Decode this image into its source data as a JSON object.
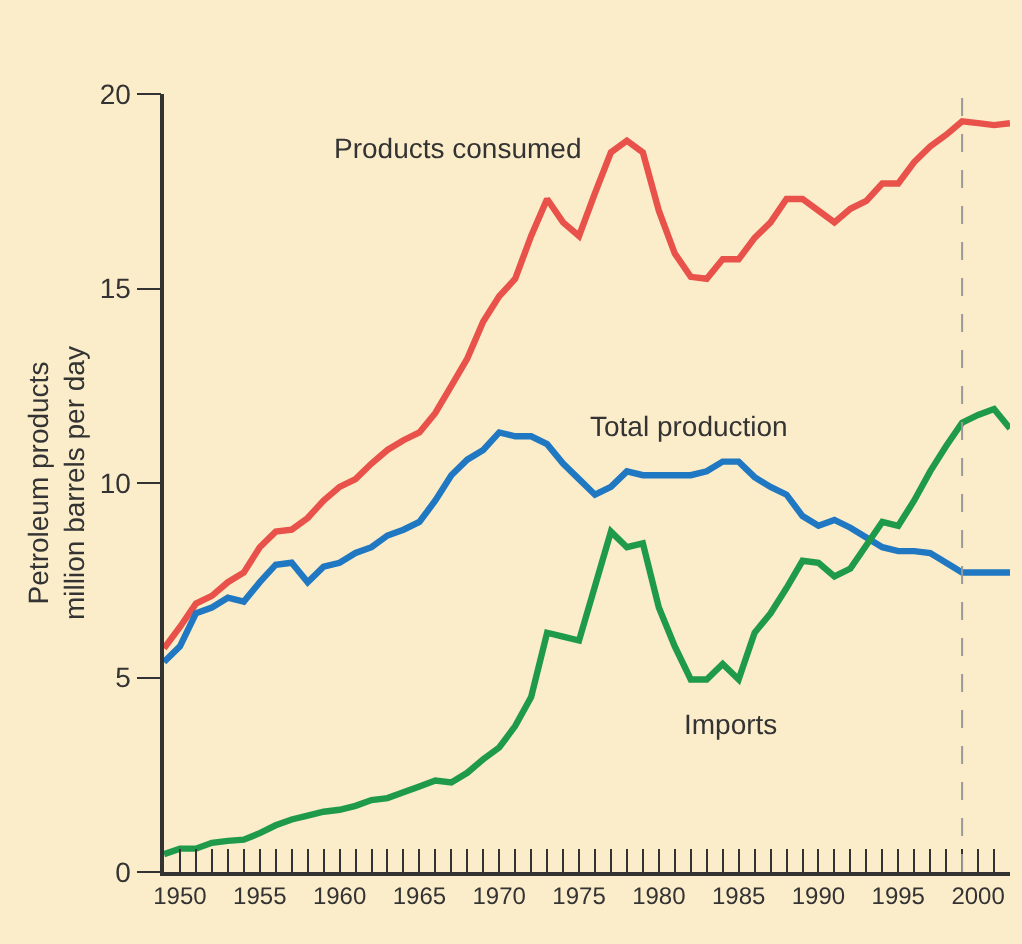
{
  "chart_data": {
    "type": "line",
    "ylabel": "Petroleum products\nmillion barrels per day",
    "x": [
      1949,
      1950,
      1951,
      1952,
      1953,
      1954,
      1955,
      1956,
      1957,
      1958,
      1959,
      1960,
      1961,
      1962,
      1963,
      1964,
      1965,
      1966,
      1967,
      1968,
      1969,
      1970,
      1971,
      1972,
      1973,
      1974,
      1975,
      1976,
      1977,
      1978,
      1979,
      1980,
      1981,
      1982,
      1983,
      1984,
      1985,
      1986,
      1987,
      1988,
      1989,
      1990,
      1991,
      1992,
      1993,
      1994,
      1995,
      1996,
      1997,
      1998,
      1999,
      2000,
      2001,
      2002
    ],
    "series": [
      {
        "color": "#e8524a",
        "values": [
          5.75,
          6.3,
          6.9,
          7.1,
          7.45,
          7.7,
          8.35,
          8.75,
          8.8,
          9.1,
          9.55,
          9.9,
          10.1,
          10.5,
          10.85,
          11.1,
          11.3,
          11.8,
          12.5,
          13.2,
          14.15,
          14.8,
          15.25,
          16.35,
          17.3,
          16.7,
          16.35,
          17.45,
          18.5,
          18.8,
          18.5,
          17.0,
          15.9,
          15.3,
          15.25,
          15.75,
          15.75,
          16.3,
          16.7,
          17.3,
          17.3,
          17.0,
          16.7,
          17.05,
          17.25,
          17.7,
          17.7,
          18.25,
          18.65,
          18.95,
          19.3,
          19.25,
          19.2,
          19.25
        ]
      },
      {
        "color": "#1f78c1",
        "values": [
          5.4,
          5.8,
          6.65,
          6.8,
          7.05,
          6.95,
          7.45,
          7.9,
          7.95,
          7.45,
          7.85,
          7.95,
          8.2,
          8.35,
          8.65,
          8.8,
          9.0,
          9.55,
          10.2,
          10.6,
          10.85,
          11.3,
          11.2,
          11.2,
          11.0,
          10.5,
          10.1,
          9.7,
          9.9,
          10.3,
          10.2,
          10.2,
          10.2,
          10.2,
          10.3,
          10.55,
          10.55,
          10.15,
          9.9,
          9.7,
          9.15,
          8.9,
          9.05,
          8.85,
          8.6,
          8.35,
          8.25,
          8.25,
          8.2,
          7.95,
          7.7,
          7.7,
          7.7,
          7.7
        ]
      },
      {
        "color": "#1f9a4a",
        "values": [
          0.46,
          0.6,
          0.6,
          0.75,
          0.8,
          0.83,
          1.0,
          1.2,
          1.35,
          1.45,
          1.55,
          1.6,
          1.7,
          1.85,
          1.9,
          2.05,
          2.2,
          2.35,
          2.3,
          2.55,
          2.9,
          3.2,
          3.75,
          4.5,
          6.15,
          6.05,
          5.95,
          7.35,
          8.75,
          8.35,
          8.45,
          6.8,
          5.8,
          4.95,
          4.95,
          5.35,
          4.95,
          6.15,
          6.65,
          7.3,
          8.0,
          7.95,
          7.6,
          7.8,
          8.4,
          9.0,
          8.9,
          9.55,
          10.3,
          10.95,
          11.55,
          11.75,
          11.9,
          11.4
        ]
      }
    ],
    "xlim": [
      1949,
      2002
    ],
    "xticks": [
      {
        "value": 1949,
        "label": null
      },
      1950,
      {
        "value": 1951,
        "label": null
      },
      {
        "value": 1952,
        "label": null
      },
      {
        "value": 1953,
        "label": null
      },
      {
        "value": 1954,
        "label": null
      },
      1955,
      {
        "value": 1956,
        "label": null
      },
      {
        "value": 1957,
        "label": null
      },
      {
        "value": 1958,
        "label": null
      },
      {
        "value": 1959,
        "label": null
      },
      1960,
      {
        "value": 1961,
        "label": null
      },
      {
        "value": 1962,
        "label": null
      },
      {
        "value": 1963,
        "label": null
      },
      {
        "value": 1964,
        "label": null
      },
      1965,
      {
        "value": 1966,
        "label": null
      },
      {
        "value": 1967,
        "label": null
      },
      {
        "value": 1968,
        "label": null
      },
      {
        "value": 1969,
        "label": null
      },
      1970,
      {
        "value": 1971,
        "label": null
      },
      {
        "value": 1972,
        "label": null
      },
      {
        "value": 1973,
        "label": null
      },
      {
        "value": 1974,
        "label": null
      },
      1975,
      {
        "value": 1976,
        "label": null
      },
      {
        "value": 1977,
        "label": null
      },
      {
        "value": 1978,
        "label": null
      },
      {
        "value": 1979,
        "label": null
      },
      1980,
      {
        "value": 1981,
        "label": null
      },
      {
        "value": 1982,
        "label": null
      },
      {
        "value": 1983,
        "label": null
      },
      {
        "value": 1984,
        "label": null
      },
      1985,
      {
        "value": 1986,
        "label": null
      },
      {
        "value": 1987,
        "label": null
      },
      {
        "value": 1988,
        "label": null
      },
      {
        "value": 1989,
        "label": null
      },
      1990,
      {
        "value": 1991,
        "label": null
      },
      {
        "value": 1992,
        "label": null
      },
      {
        "value": 1993,
        "label": null
      },
      {
        "value": 1994,
        "label": null
      },
      1995,
      {
        "value": 1996,
        "label": null
      },
      {
        "value": 1997,
        "label": null
      },
      {
        "value": 1998,
        "label": null
      },
      {
        "value": 1999,
        "label": null
      },
      2000,
      {
        "value": 2001,
        "label": null
      }
    ],
    "ylim": [
      0,
      20
    ],
    "yticks": [
      0,
      5,
      10,
      15,
      20
    ],
    "ref_lines": [
      {
        "axis": "x",
        "value": 1999,
        "color": "#999999",
        "line_style": "dashed"
      }
    ],
    "annotations": [
      {
        "text": "Products consumed",
        "x": 1978,
        "y": 18.8
      },
      {
        "text": "Total production",
        "x": 1985,
        "y": 10.55
      },
      {
        "text": "Imports",
        "x": 1983,
        "y": 4.95
      }
    ],
    "grid": false,
    "legend": false,
    "marker": "none",
    "line_style": "solid"
  }
}
